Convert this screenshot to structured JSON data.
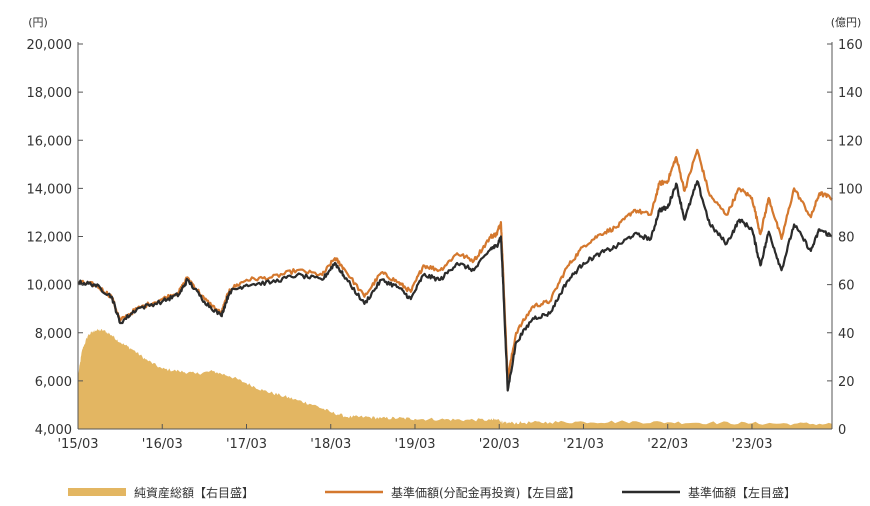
{
  "chart_data": {
    "type": "line",
    "left_axis": {
      "unit": "(円)",
      "range": [
        4000,
        20000
      ],
      "ticks": [
        "4,000",
        "6,000",
        "8,000",
        "10,000",
        "12,000",
        "14,000",
        "16,000",
        "18,000",
        "20,000"
      ]
    },
    "right_axis": {
      "unit": "(億円)",
      "range": [
        0,
        160
      ],
      "ticks": [
        "0",
        "20",
        "40",
        "60",
        "80",
        "100",
        "120",
        "140",
        "160"
      ]
    },
    "x_axis": {
      "ticks": [
        "'15/03",
        "'16/03",
        "'17/03",
        "'18/03",
        "'19/03",
        "'20/03",
        "'21/03",
        "'22/03",
        "'23/03"
      ]
    },
    "legend": {
      "placement": "bottom"
    },
    "colors": {
      "area": "#e3b662",
      "reinvest": "#d4782e",
      "nav": "#2b2b2b",
      "axis": "#555555"
    },
    "series": [
      {
        "name": "純資産総額【右目盛】",
        "kind": "area",
        "axis": "right",
        "x": [
          2015.0,
          2015.05,
          2015.12,
          2015.2,
          2015.3,
          2015.4,
          2015.5,
          2015.65,
          2015.8,
          2016.0,
          2016.2,
          2016.4,
          2016.6,
          2016.8,
          2017.0,
          2017.2,
          2017.4,
          2017.6,
          2017.8,
          2018.0,
          2018.2,
          2018.4,
          2018.6,
          2018.8,
          2019.0,
          2019.3,
          2019.6,
          2019.9,
          2020.0,
          2020.05,
          2020.1,
          2020.3,
          2020.6,
          2021.0,
          2021.5,
          2022.0,
          2022.5,
          2023.0,
          2023.5,
          2023.95
        ],
        "y": [
          22,
          33,
          39,
          41,
          41,
          39,
          36,
          33,
          29,
          25,
          24,
          23,
          24,
          22,
          19,
          16,
          14,
          12,
          10,
          7,
          5,
          5,
          4.5,
          4.5,
          4.2,
          4.0,
          3.8,
          3.8,
          3.8,
          2.5,
          2.5,
          2.6,
          2.8,
          3.0,
          3.0,
          2.8,
          2.6,
          2.4,
          2.2,
          2.1
        ]
      },
      {
        "name": "基準価額(分配金再投資)【左目盛】",
        "kind": "line",
        "axis": "left",
        "x": [
          2015.0,
          2015.2,
          2015.4,
          2015.5,
          2015.7,
          2016.0,
          2016.2,
          2016.3,
          2016.5,
          2016.7,
          2016.8,
          2017.0,
          2017.3,
          2017.6,
          2017.9,
          2018.05,
          2018.15,
          2018.4,
          2018.6,
          2018.8,
          2018.95,
          2019.1,
          2019.3,
          2019.5,
          2019.7,
          2019.9,
          2019.97,
          2020.02,
          2020.05,
          2020.1,
          2020.2,
          2020.4,
          2020.6,
          2020.8,
          2021.0,
          2021.2,
          2021.4,
          2021.6,
          2021.8,
          2021.9,
          2022.0,
          2022.1,
          2022.2,
          2022.35,
          2022.5,
          2022.7,
          2022.85,
          2023.0,
          2023.1,
          2023.2,
          2023.35,
          2023.5,
          2023.7,
          2023.8,
          2023.95
        ],
        "y": [
          10100,
          10000,
          9500,
          8500,
          9000,
          9400,
          9700,
          10300,
          9400,
          8800,
          9800,
          10200,
          10300,
          10600,
          10400,
          11100,
          10700,
          9500,
          10500,
          10100,
          9700,
          10800,
          10600,
          11300,
          11000,
          12000,
          12100,
          12600,
          10200,
          6100,
          8000,
          9100,
          9300,
          10700,
          11600,
          12100,
          12400,
          13100,
          12900,
          14200,
          14300,
          15300,
          13900,
          15600,
          13700,
          12900,
          14000,
          13600,
          12100,
          13600,
          11900,
          14000,
          12800,
          13800,
          13600
        ]
      },
      {
        "name": "基準価額【左目盛】",
        "kind": "line",
        "axis": "left",
        "x": [
          2015.0,
          2015.2,
          2015.4,
          2015.5,
          2015.7,
          2016.0,
          2016.2,
          2016.3,
          2016.5,
          2016.7,
          2016.8,
          2017.0,
          2017.3,
          2017.6,
          2017.9,
          2018.05,
          2018.15,
          2018.4,
          2018.6,
          2018.8,
          2018.95,
          2019.1,
          2019.3,
          2019.5,
          2019.7,
          2019.9,
          2019.97,
          2020.02,
          2020.05,
          2020.1,
          2020.2,
          2020.4,
          2020.6,
          2020.8,
          2021.0,
          2021.2,
          2021.4,
          2021.6,
          2021.8,
          2021.9,
          2022.0,
          2022.1,
          2022.2,
          2022.35,
          2022.5,
          2022.7,
          2022.85,
          2023.0,
          2023.1,
          2023.2,
          2023.35,
          2023.5,
          2023.7,
          2023.8,
          2023.95
        ],
        "y": [
          10100,
          10000,
          9500,
          8400,
          9000,
          9300,
          9600,
          10200,
          9300,
          8700,
          9700,
          10000,
          10100,
          10400,
          10200,
          10900,
          10400,
          9200,
          10200,
          9900,
          9400,
          10400,
          10200,
          10900,
          10600,
          11500,
          11600,
          12000,
          9800,
          5600,
          7600,
          8600,
          8800,
          10100,
          10900,
          11300,
          11600,
          12100,
          11900,
          13100,
          13200,
          14200,
          12700,
          14300,
          12500,
          11700,
          12700,
          12300,
          10800,
          12200,
          10600,
          12500,
          11400,
          12300,
          12000
        ]
      }
    ]
  }
}
